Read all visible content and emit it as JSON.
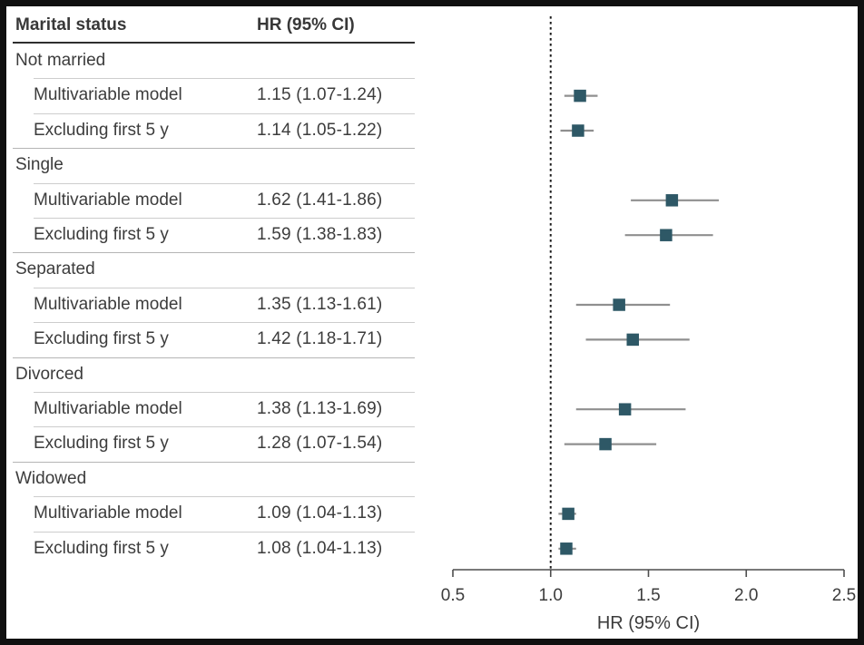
{
  "figure": {
    "kind": "forest-plot-figure",
    "background": "#ffffff",
    "border_color": "#101010"
  },
  "table": {
    "col1_header": "Marital status",
    "col2_header": "HR (95% CI)"
  },
  "chart_data": {
    "type": "scatter",
    "subtype": "forest-plot",
    "xlabel": "HR (95% CI)",
    "xlim": [
      0.5,
      2.5
    ],
    "xticks": [
      "0.5",
      "1.0",
      "1.5",
      "2.0",
      "2.5"
    ],
    "xtick_values": [
      0.5,
      1.0,
      1.5,
      2.0,
      2.5
    ],
    "reference_line_x": 1.0,
    "legend": "none",
    "grid": "off",
    "groups": [
      {
        "group": "Not married",
        "rows": [
          {
            "model": "Multivariable model",
            "hr": 1.15,
            "ci_low": 1.07,
            "ci_high": 1.24,
            "hr_text": "1.15 (1.07-1.24)"
          },
          {
            "model": "Excluding first 5 y",
            "hr": 1.14,
            "ci_low": 1.05,
            "ci_high": 1.22,
            "hr_text": "1.14 (1.05-1.22)"
          }
        ]
      },
      {
        "group": "Single",
        "rows": [
          {
            "model": "Multivariable model",
            "hr": 1.62,
            "ci_low": 1.41,
            "ci_high": 1.86,
            "hr_text": "1.62 (1.41-1.86)"
          },
          {
            "model": "Excluding first 5 y",
            "hr": 1.59,
            "ci_low": 1.38,
            "ci_high": 1.83,
            "hr_text": "1.59 (1.38-1.83)"
          }
        ]
      },
      {
        "group": "Separated",
        "rows": [
          {
            "model": "Multivariable model",
            "hr": 1.35,
            "ci_low": 1.13,
            "ci_high": 1.61,
            "hr_text": "1.35 (1.13-1.61)"
          },
          {
            "model": "Excluding first 5 y",
            "hr": 1.42,
            "ci_low": 1.18,
            "ci_high": 1.71,
            "hr_text": "1.42 (1.18-1.71)"
          }
        ]
      },
      {
        "group": "Divorced",
        "rows": [
          {
            "model": "Multivariable model",
            "hr": 1.38,
            "ci_low": 1.13,
            "ci_high": 1.69,
            "hr_text": "1.38 (1.13-1.69)"
          },
          {
            "model": "Excluding first 5 y",
            "hr": 1.28,
            "ci_low": 1.07,
            "ci_high": 1.54,
            "hr_text": "1.28 (1.07-1.54)"
          }
        ]
      },
      {
        "group": "Widowed",
        "rows": [
          {
            "model": "Multivariable model",
            "hr": 1.09,
            "ci_low": 1.04,
            "ci_high": 1.13,
            "hr_text": "1.09 (1.04-1.13)"
          },
          {
            "model": "Excluding first 5 y",
            "hr": 1.08,
            "ci_low": 1.04,
            "ci_high": 1.13,
            "hr_text": "1.08 (1.04-1.13)"
          }
        ]
      }
    ]
  },
  "colors": {
    "marker_fill": "#2e5866",
    "ci_line": "#8f8f8f",
    "axis_line": "#4d4d4d",
    "reference_line": "#1f1f1f",
    "text": "#3c3c3c",
    "header_rule": "#2f2f2f",
    "separator_full": "#b5b5b5",
    "separator_inner": "#cdcdcd"
  }
}
